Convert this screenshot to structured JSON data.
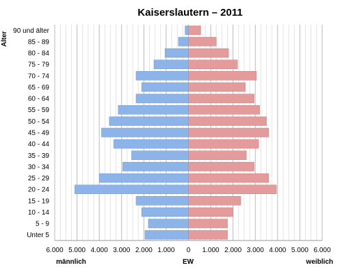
{
  "chart_data": {
    "type": "bar",
    "orientation": "horizontal-population-pyramid",
    "title": "Kaiserslautern – 2011",
    "y_axis_label": "Alter",
    "x_center_label": "EW",
    "x_left_label": "männlich",
    "x_right_label": "weiblich",
    "categories": [
      "90 und älter",
      "85 - 89",
      "80 - 84",
      "75 - 79",
      "70 - 74",
      "65 - 69",
      "60 - 64",
      "55 - 59",
      "50 - 54",
      "45 - 49",
      "40 - 44",
      "35 - 39",
      "30 - 34",
      "25 - 29",
      "20 - 24",
      "15 - 19",
      "10 - 14",
      "5 - 9",
      "Unter 5"
    ],
    "x_range": [
      -6000,
      6000
    ],
    "x_ticks": [
      -6000,
      -5000,
      -4000,
      -3000,
      -2000,
      -1000,
      0,
      1000,
      2000,
      3000,
      4000,
      5000,
      6000
    ],
    "x_tick_labels": [
      "6.000",
      "5.000",
      "4.000",
      "3.000",
      "2.000",
      "1.000",
      "0",
      "1.000",
      "2.000",
      "3.000",
      "4.000",
      "5.000",
      "6.000"
    ],
    "grid": true,
    "series": [
      {
        "name": "männlich",
        "color": "#8cb4e8",
        "values": [
          150,
          450,
          1050,
          1550,
          2350,
          2100,
          2350,
          3150,
          3550,
          3900,
          3350,
          2550,
          2950,
          4000,
          5100,
          2350,
          2100,
          1800,
          1950
        ]
      },
      {
        "name": "weiblich",
        "color": "#e49b9b",
        "values": [
          550,
          1250,
          1800,
          2200,
          3050,
          2550,
          2950,
          3200,
          3500,
          3600,
          3150,
          2600,
          2950,
          3600,
          3950,
          2350,
          2000,
          1750,
          1750
        ]
      }
    ]
  }
}
